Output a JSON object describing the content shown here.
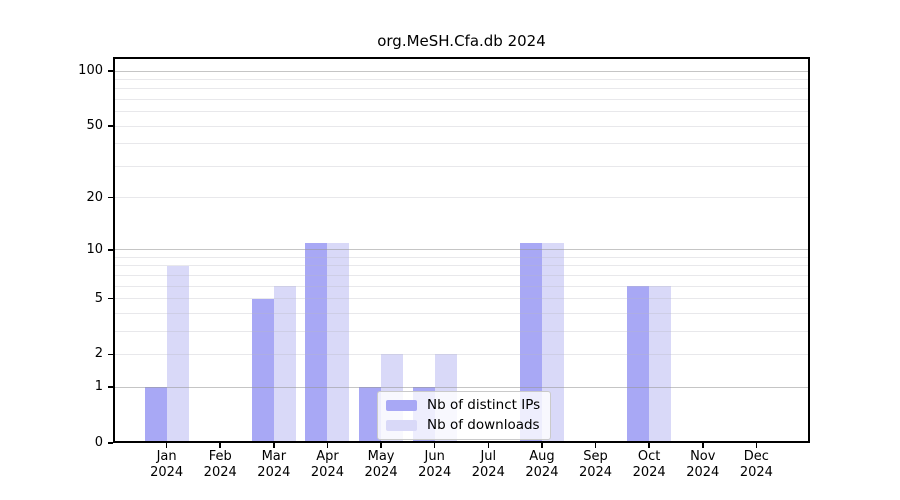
{
  "title": "org.MeSH.Cfa.db 2024",
  "colors": {
    "distinct_ips_bar": "#a8a8f5",
    "downloads_bar": "#d9d9f8",
    "major_gridline": "#cccccc",
    "minor_gridline": "#ebebee",
    "axis": "#000000",
    "background": "#ffffff"
  },
  "chart_data": {
    "type": "bar",
    "title": "org.MeSH.Cfa.db 2024",
    "xlabel": "",
    "ylabel": "",
    "categories": [
      "Jan",
      "Feb",
      "Mar",
      "Apr",
      "May",
      "Jun",
      "Jul",
      "Aug",
      "Sep",
      "Oct",
      "Nov",
      "Dec"
    ],
    "category_year": "2024",
    "series": [
      {
        "name": "Nb of distinct IPs",
        "color": "#a8a8f5",
        "values": [
          1,
          0,
          5,
          11,
          1,
          1,
          0,
          11,
          0,
          6,
          0,
          0
        ]
      },
      {
        "name": "Nb of downloads",
        "color": "#d9d9f8",
        "values": [
          8,
          0,
          6,
          11,
          2,
          2,
          0,
          11,
          0,
          6,
          0,
          0
        ]
      }
    ],
    "yscale": "log2(value+1)",
    "yticks": [
      0,
      1,
      2,
      5,
      10,
      20,
      50,
      100
    ],
    "ylim": [
      0,
      118
    ],
    "grid_major_values": [
      1,
      10,
      100
    ],
    "grid_minor_values": [
      2,
      3,
      4,
      5,
      6,
      7,
      8,
      9,
      20,
      30,
      40,
      50,
      60,
      70,
      80,
      90
    ],
    "grid": "on",
    "legend_position": "inside-bottom-center"
  }
}
